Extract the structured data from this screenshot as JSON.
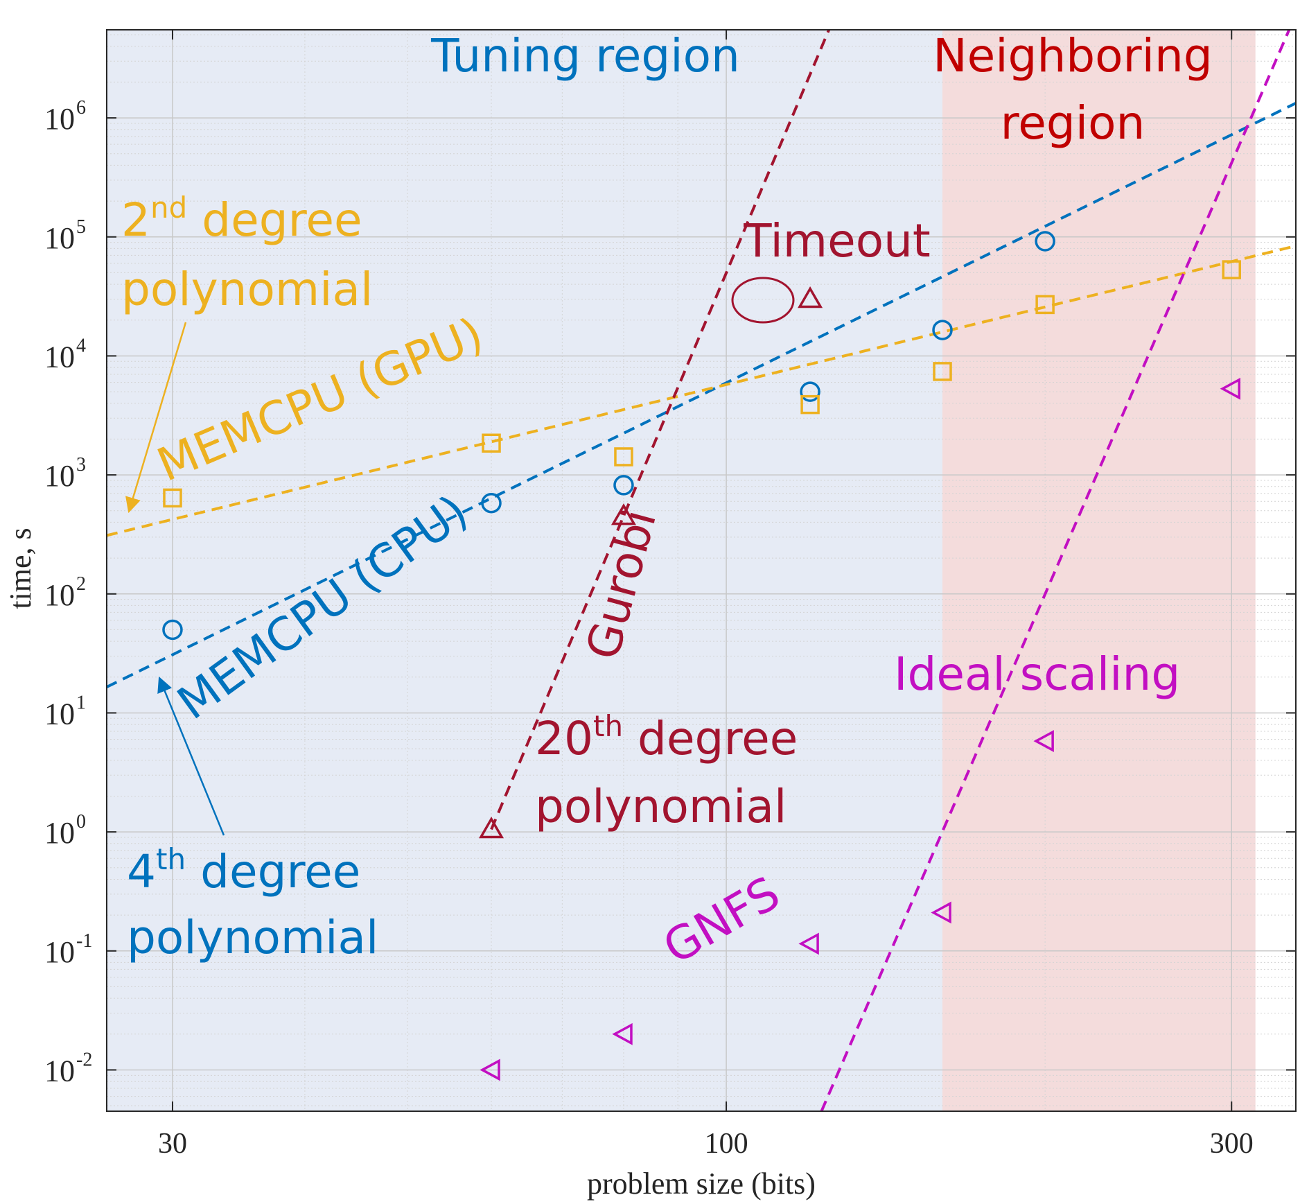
{
  "chart_data": {
    "type": "scatter",
    "x_scale": "log",
    "y_scale": "log",
    "xlim": [
      26,
      345
    ],
    "ylim": [
      0.0045,
      5500000
    ],
    "xticks": [
      30,
      100,
      300
    ],
    "xtick_labels": [
      "30",
      "100",
      "300"
    ],
    "yticks": [
      0.01,
      0.1,
      1,
      10,
      100,
      1000,
      10000,
      100000,
      1000000
    ],
    "ytick_bases": [
      "10",
      "10",
      "10",
      "10",
      "10",
      "10",
      "10",
      "10",
      "10"
    ],
    "ytick_exponents": [
      "-2",
      "-1",
      "0",
      "1",
      "2",
      "3",
      "4",
      "5",
      "6"
    ],
    "xlabel": "problem size (bits)",
    "ylabel": "time, s",
    "grid": true,
    "regions": [
      {
        "x": [
          26,
          160
        ],
        "color": "#e6ebf5"
      },
      {
        "x": [
          160,
          316
        ],
        "color": "#f4dcdc"
      }
    ],
    "series": [
      {
        "marker": "circle",
        "color": "#0072bd",
        "points": [
          [
            30,
            50
          ],
          [
            60,
            580
          ],
          [
            80,
            820
          ],
          [
            120,
            5000
          ],
          [
            160,
            16500
          ],
          [
            200,
            92000
          ]
        ]
      },
      {
        "marker": "square",
        "color": "#edb120",
        "points": [
          [
            30,
            640
          ],
          [
            60,
            1850
          ],
          [
            80,
            1420
          ],
          [
            120,
            3900
          ],
          [
            160,
            7400
          ],
          [
            200,
            27000
          ],
          [
            300,
            53000
          ]
        ]
      },
      {
        "marker": "triangle-up",
        "color": "#a2142f",
        "points": [
          [
            60,
            1.05
          ],
          [
            80,
            450
          ],
          [
            120,
            30000
          ]
        ]
      },
      {
        "marker": "triangle-left",
        "color": "#c20fc2",
        "points": [
          [
            60,
            0.01
          ],
          [
            80,
            0.02
          ],
          [
            120,
            0.115
          ],
          [
            160,
            0.21
          ],
          [
            200,
            5.8
          ],
          [
            300,
            5300
          ]
        ]
      }
    ],
    "fit_lines": [
      {
        "color": "#0072bd",
        "points": [
          [
            26,
            16.5
          ],
          [
            345,
            1330000
          ]
        ]
      },
      {
        "color": "#edb120",
        "points": [
          [
            26,
            310
          ],
          [
            345,
            84000
          ]
        ]
      },
      {
        "color": "#a2142f",
        "points": [
          [
            60,
            1.05
          ],
          [
            125,
            5500000
          ]
        ]
      },
      {
        "color": "#c20fc2",
        "points": [
          [
            123,
            0.0045
          ],
          [
            340,
            5500000
          ]
        ]
      }
    ]
  },
  "annotations": {
    "tuning_region": "Tuning region",
    "neighboring_region_1": "Neighboring",
    "neighboring_region_2": "region",
    "timeout": "Timeout",
    "second_degree_base": "2",
    "second_degree_sup": "nd",
    "second_degree_rest": " degree",
    "second_degree_poly": "polynomial",
    "memcpu_gpu": "MEMCPU (GPU)",
    "memcpu_cpu": "MEMCPU (CPU)",
    "gurobi": "Gurobi",
    "twentieth_base": "20",
    "twentieth_sup": "th",
    "twentieth_rest": " degree",
    "twentieth_poly": "polynomial",
    "fourth_base": "4",
    "fourth_sup": "th",
    "fourth_rest": " degree",
    "fourth_poly": "polynomial",
    "ideal_scaling": "Ideal scaling",
    "gnfs": "GNFS"
  },
  "colors": {
    "blue": "#0072bd",
    "orange": "#edb120",
    "darkred": "#a2142f",
    "magenta": "#c20fc2",
    "region_red": "#c00000"
  }
}
